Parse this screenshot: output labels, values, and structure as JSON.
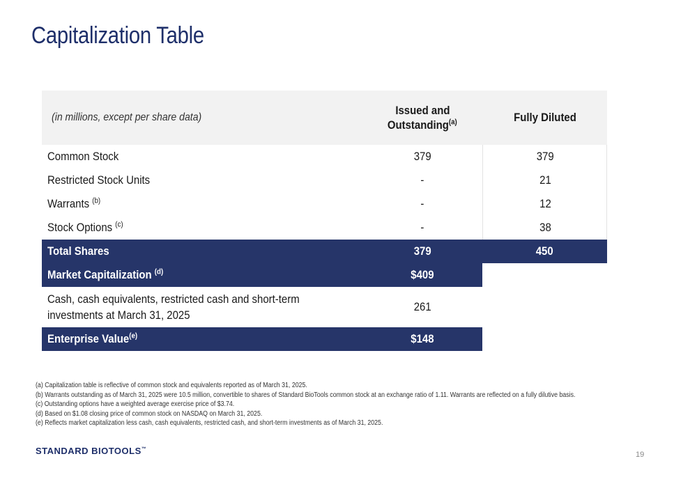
{
  "title": "Capitalization Table",
  "table": {
    "header": {
      "label": "(in millions, except per share data)",
      "issued_line1": "Issued and",
      "issued_line2": "Outstanding",
      "issued_sup": "(a)",
      "diluted": "Fully Diluted"
    },
    "rows": [
      {
        "label": "Common Stock",
        "sup": "",
        "issued": "379",
        "diluted": "379"
      },
      {
        "label": "Restricted Stock Units",
        "sup": "",
        "issued": "-",
        "diluted": "21"
      },
      {
        "label": "Warrants",
        "sup": "(b)",
        "issued": "-",
        "diluted": "12"
      },
      {
        "label": "Stock Options",
        "sup": "(c)",
        "issued": "-",
        "diluted": "38"
      }
    ],
    "total_shares": {
      "label": "Total Shares",
      "issued": "379",
      "diluted": "450"
    },
    "market_cap": {
      "label": "Market Capitalization",
      "sup": "(d)",
      "issued": "$409"
    },
    "cash": {
      "label_line1": "Cash, cash equivalents, restricted cash and short-term",
      "label_line2": "investments at March 31, 2025",
      "issued": "261"
    },
    "enterprise_value": {
      "label": "Enterprise Value",
      "sup": "(e)",
      "issued": "$148"
    }
  },
  "footnotes": [
    "(a) Capitalization table is reflective of common stock and equivalents reported as of March 31, 2025.",
    "(b) Warrants outstanding as of March 31, 2025 were 10.5 million, convertible to shares of Standard BioTools common stock at an exchange ratio of 1.11. Warrants are reflected on a fully dilutive basis.",
    "(c) Outstanding options have a weighted average exercise price of $3.74.",
    "(d) Based on $1.08 closing price of common stock on NASDAQ on March 31, 2025.",
    "(e) Reflects market capitalization less cash, cash equivalents, restricted cash, and short-term investments as of March 31, 2025."
  ],
  "logo": {
    "text": "STANDARD BIOTOOLS",
    "tm": "™"
  },
  "page_number": "19",
  "colors": {
    "brand_navy": "#263569",
    "title": "#1e2f6a",
    "header_bg": "#f2f2f2"
  }
}
